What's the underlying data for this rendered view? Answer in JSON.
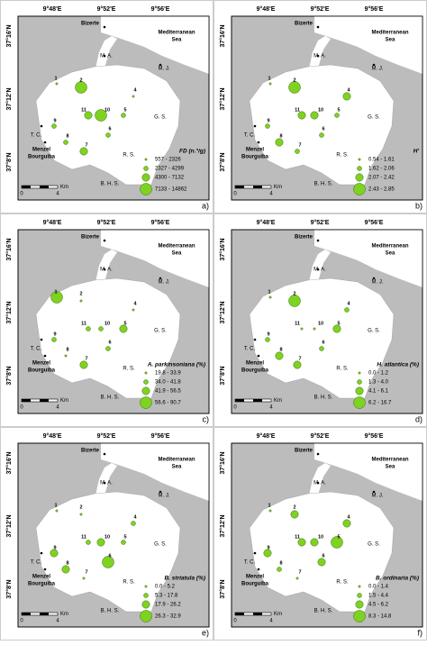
{
  "map": {
    "lon_labels": [
      "9°48'E",
      "9°52'E",
      "9°56'E"
    ],
    "lat_labels": [
      "37°16'N",
      "37°12'N",
      "37°8'N"
    ],
    "places": [
      "Bizerte",
      "Mediterranean",
      "Sea",
      "M. A.",
      "M. J.",
      "T. C.",
      "G. S.",
      "R. S.",
      "B. H. S.",
      "Menzel",
      "Bourguiba"
    ],
    "stations": [
      "1",
      "2",
      "4",
      "5",
      "6",
      "7",
      "8",
      "9",
      "10",
      "11"
    ],
    "scale": {
      "unit": "Km",
      "start": "0",
      "end": "4"
    }
  },
  "panels": [
    {
      "letter": "a)",
      "legend_title": "FD (n.°/g)",
      "classes": [
        "557 - 2326",
        "2327 - 4299",
        "4300 - 7132",
        "7133 - 14862"
      ]
    },
    {
      "letter": "b)",
      "legend_title": "H'",
      "classes": [
        "0.54 - 1.61",
        "1.62 - 2.06",
        "2.07 - 2.42",
        "2.43 - 2.85"
      ]
    },
    {
      "letter": "c)",
      "legend_title": "A. parkinsoniana (%)",
      "classes": [
        "19.8 - 33.9",
        "34.0 - 41.8",
        "41.9 - 56.5",
        "56.6 - 90.7"
      ]
    },
    {
      "letter": "d)",
      "legend_title": "H. atlantica (%)",
      "classes": [
        "0.0 - 1.2",
        "1.3 - 4.0",
        "4.1 - 6.1",
        "6.2 - 16.7"
      ]
    },
    {
      "letter": "e)",
      "legend_title": "B. striatula (%)",
      "classes": [
        "0.0 - 5.2",
        "5.3 - 17.8",
        "17.9 - 26.2",
        "26.3 - 32.9"
      ]
    },
    {
      "letter": "f)",
      "legend_title": "B. ordinaria (%)",
      "classes": [
        "0.0 - 1.4",
        "1.5 - 4.4",
        "4.5 - 6.2",
        "8.3 - 14.8"
      ]
    }
  ]
}
